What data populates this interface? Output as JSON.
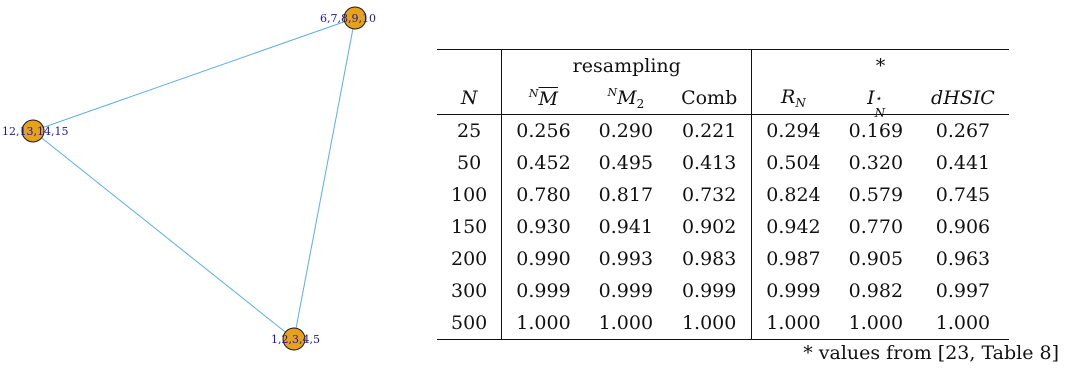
{
  "graph": {
    "nodes": [
      {
        "label": "6,7,8,9,10",
        "id": "top"
      },
      {
        "label": "12,13,14,15",
        "id": "left"
      },
      {
        "label": "1,2,3,4,5",
        "id": "bottom"
      }
    ],
    "colors": {
      "node": "#e6a21a",
      "edge": "#5aaee6",
      "label": "#1a1a9a"
    }
  },
  "table": {
    "group_resampling": "resampling",
    "group_star": "*",
    "col_N": "N",
    "col_m1_pre": "N",
    "col_m1": "M",
    "col_m2_pre": "N",
    "col_m2": "M",
    "col_m2_sub": "2",
    "col_comb": "Comb",
    "col_R": "R",
    "col_R_sub": "N",
    "col_I": "I",
    "col_I_sup": "⋆",
    "col_I_sub": "N",
    "col_dhsic": "dHSIC",
    "rows": [
      [
        "25",
        "0.256",
        "0.290",
        "0.221",
        "0.294",
        "0.169",
        "0.267"
      ],
      [
        "50",
        "0.452",
        "0.495",
        "0.413",
        "0.504",
        "0.320",
        "0.441"
      ],
      [
        "100",
        "0.780",
        "0.817",
        "0.732",
        "0.824",
        "0.579",
        "0.745"
      ],
      [
        "150",
        "0.930",
        "0.941",
        "0.902",
        "0.942",
        "0.770",
        "0.906"
      ],
      [
        "200",
        "0.990",
        "0.993",
        "0.983",
        "0.987",
        "0.905",
        "0.963"
      ],
      [
        "300",
        "0.999",
        "0.999",
        "0.999",
        "0.999",
        "0.982",
        "0.997"
      ],
      [
        "500",
        "1.000",
        "1.000",
        "1.000",
        "1.000",
        "1.000",
        "1.000"
      ]
    ],
    "footnote": "* values from [23, Table 8]"
  }
}
